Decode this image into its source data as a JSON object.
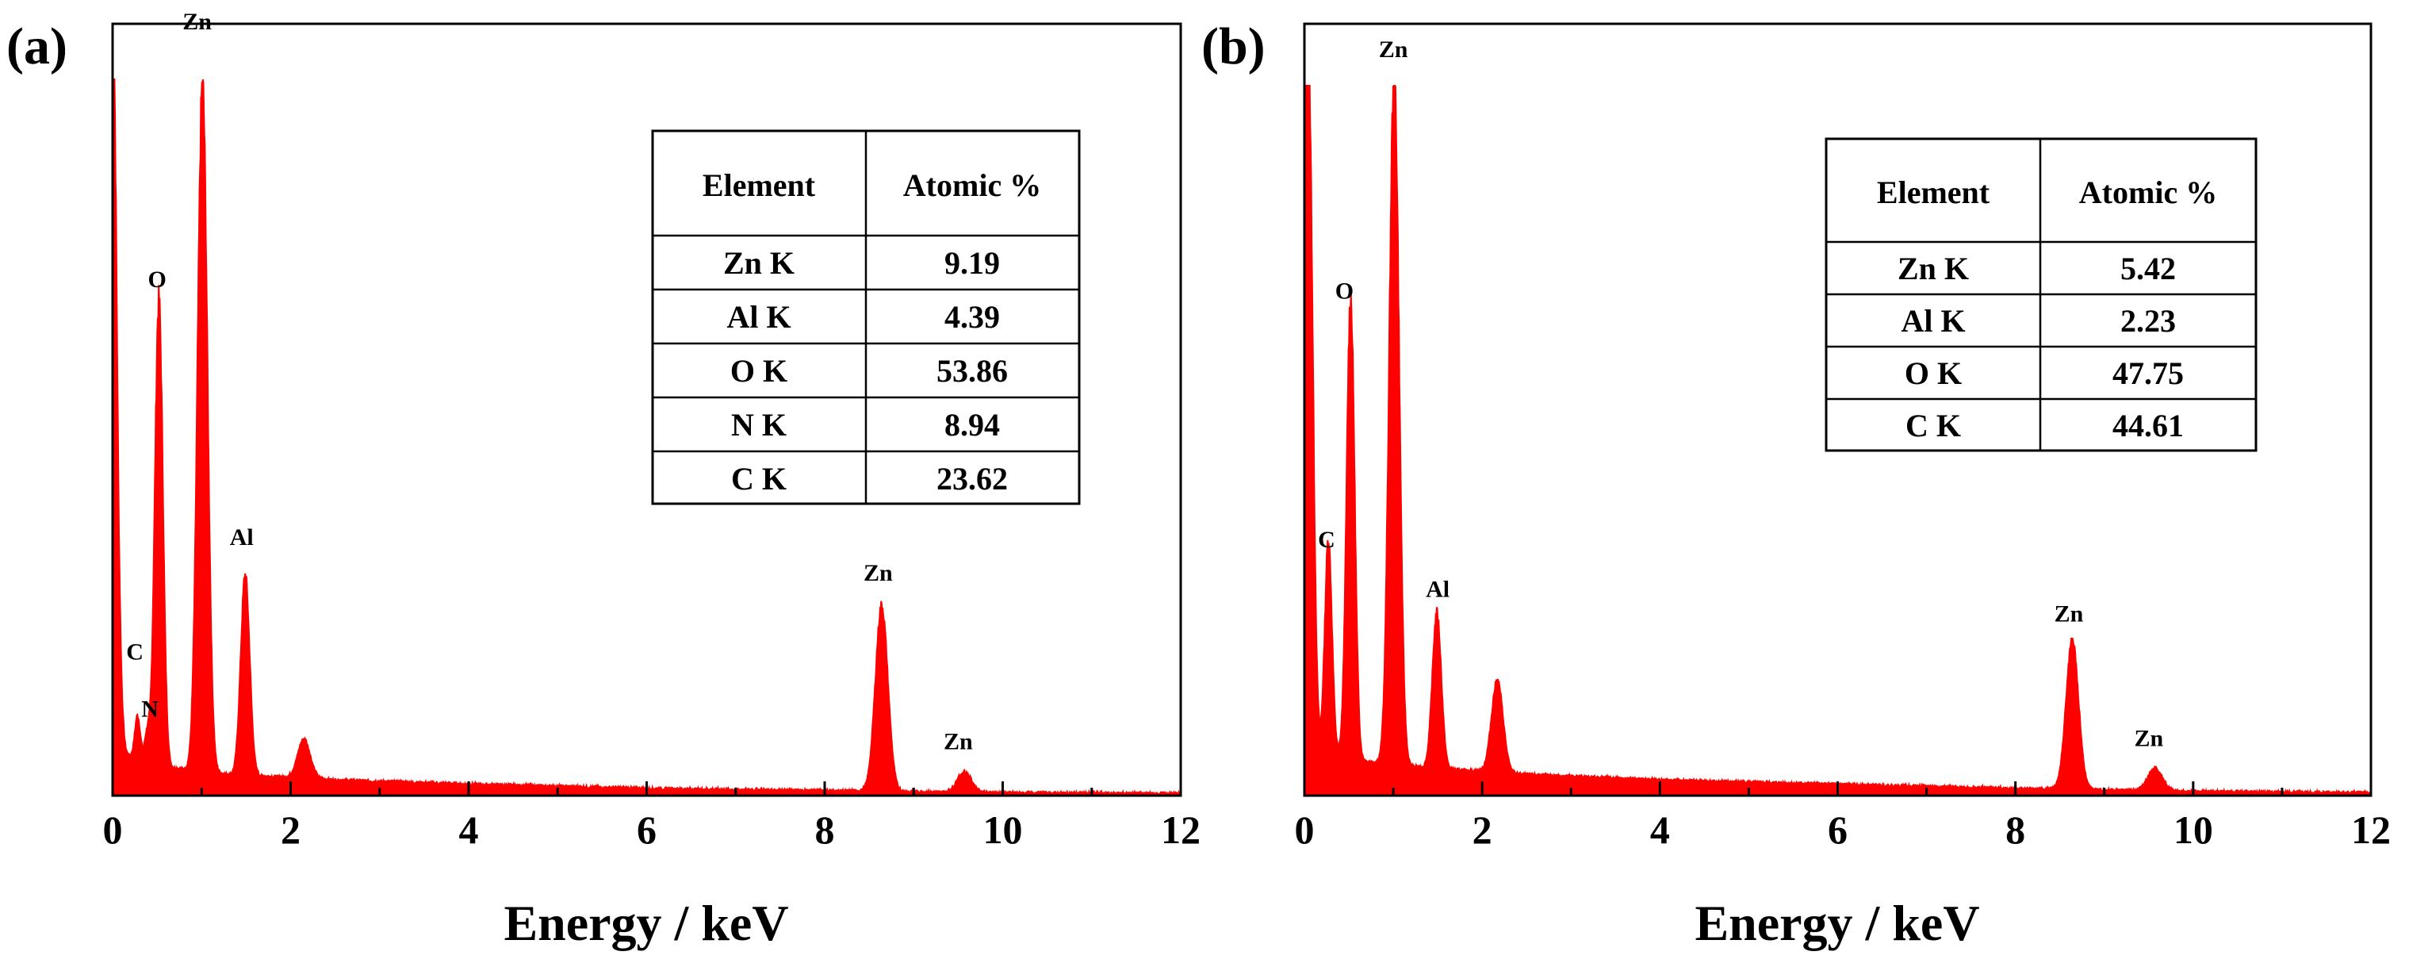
{
  "chart_data": [
    {
      "type": "line",
      "panel_label": "(a)",
      "xlabel": "Energy / keV",
      "ylabel": "",
      "xlim": [
        0,
        12
      ],
      "ylim": [
        0,
        100
      ],
      "x_ticks": [
        "0",
        "2",
        "4",
        "6",
        "8",
        "10",
        "12"
      ],
      "series": [
        {
          "name": "EDS spectrum",
          "color": "#ff0000",
          "baseline": [
            [
              0.0,
              30
            ],
            [
              0.07,
              6
            ],
            [
              0.6,
              4
            ],
            [
              1.3,
              3
            ],
            [
              2.5,
              2.2
            ],
            [
              4,
              1.6
            ],
            [
              6,
              1.0
            ],
            [
              8,
              0.7
            ],
            [
              10,
              0.4
            ],
            [
              12,
              0.3
            ]
          ],
          "peaks": [
            {
              "center": 0.0,
              "height": 86,
              "width": 0.05
            },
            {
              "center": 0.28,
              "height": 6,
              "width": 0.03
            },
            {
              "center": 0.39,
              "height": 4,
              "width": 0.03
            },
            {
              "center": 0.52,
              "height": 65,
              "width": 0.045
            },
            {
              "center": 1.01,
              "height": 96,
              "width": 0.055
            },
            {
              "center": 1.49,
              "height": 28,
              "width": 0.05
            },
            {
              "center": 2.15,
              "height": 5.5,
              "width": 0.07
            },
            {
              "center": 8.64,
              "height": 26,
              "width": 0.07
            },
            {
              "center": 9.57,
              "height": 2.8,
              "width": 0.08
            }
          ]
        }
      ],
      "annotations": [
        {
          "text": "Zn",
          "x": 0.95,
          "y": 107
        },
        {
          "text": "O",
          "x": 0.5,
          "y": 71
        },
        {
          "text": "Al",
          "x": 1.45,
          "y": 35
        },
        {
          "text": "C",
          "x": 0.25,
          "y": 19
        },
        {
          "text": "N",
          "x": 0.42,
          "y": 11
        },
        {
          "text": "Zn",
          "x": 8.6,
          "y": 30
        },
        {
          "text": "Zn",
          "x": 9.5,
          "y": 6.5
        }
      ],
      "table": {
        "headers": [
          "Element",
          "Atomic %"
        ],
        "rows": [
          [
            "Zn K",
            "9.19"
          ],
          [
            "Al K",
            "4.39"
          ],
          [
            "O K",
            "53.86"
          ],
          [
            "N K",
            "8.94"
          ],
          [
            "C K",
            "23.62"
          ]
        ]
      }
    },
    {
      "type": "line",
      "panel_label": "(b)",
      "xlabel": "Energy / keV",
      "ylabel": "",
      "xlim": [
        0,
        12
      ],
      "ylim": [
        0,
        100
      ],
      "x_ticks": [
        "0",
        "2",
        "4",
        "6",
        "8",
        "10",
        "12"
      ],
      "series": [
        {
          "name": "EDS spectrum",
          "color": "#ff0000",
          "baseline": [
            [
              0.0,
              35
            ],
            [
              0.07,
              7
            ],
            [
              0.6,
              5
            ],
            [
              1.3,
              4
            ],
            [
              2.5,
              3
            ],
            [
              4,
              2.2
            ],
            [
              6,
              1.6
            ],
            [
              8,
              1.0
            ],
            [
              10,
              0.6
            ],
            [
              12,
              0.4
            ]
          ],
          "peaks": [
            {
              "center": 0.05,
              "height": 93,
              "width": 0.045
            },
            {
              "center": 0.27,
              "height": 30,
              "width": 0.04
            },
            {
              "center": 0.52,
              "height": 65,
              "width": 0.045
            },
            {
              "center": 1.01,
              "height": 98,
              "width": 0.055
            },
            {
              "center": 1.49,
              "height": 22,
              "width": 0.05
            },
            {
              "center": 2.17,
              "height": 13,
              "width": 0.065
            },
            {
              "center": 8.64,
              "height": 21,
              "width": 0.07
            },
            {
              "center": 9.57,
              "height": 3.2,
              "width": 0.08
            }
          ]
        }
      ],
      "annotations": [
        {
          "text": "Zn",
          "x": 1.0,
          "y": 104
        },
        {
          "text": "O",
          "x": 0.45,
          "y": 70
        },
        {
          "text": "C",
          "x": 0.25,
          "y": 35
        },
        {
          "text": "Al",
          "x": 1.5,
          "y": 28
        },
        {
          "text": "Zn",
          "x": 8.6,
          "y": 24.5
        },
        {
          "text": "Zn",
          "x": 9.5,
          "y": 7
        }
      ],
      "table": {
        "headers": [
          "Element",
          "Atomic %"
        ],
        "rows": [
          [
            "Zn K",
            "5.42"
          ],
          [
            "Al K",
            "2.23"
          ],
          [
            "O K",
            "47.75"
          ],
          [
            "C K",
            "44.61"
          ]
        ]
      }
    }
  ]
}
